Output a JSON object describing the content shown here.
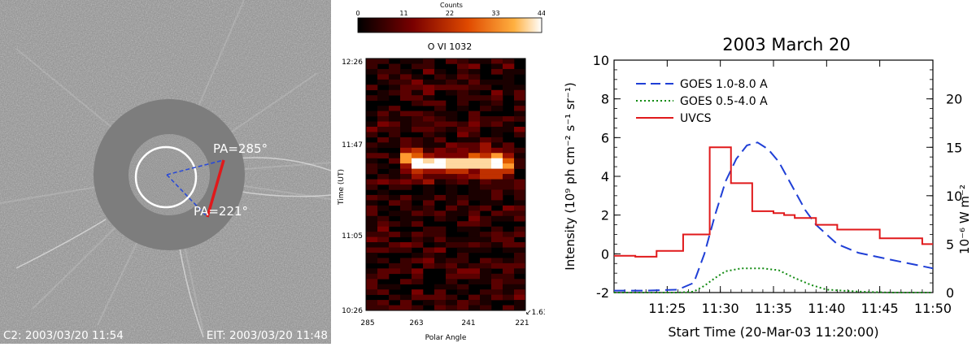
{
  "coronagraph": {
    "pa_top": "PA=285°",
    "pa_bottom": "PA=221°",
    "c2_label": "C2: 2003/03/20 11:54",
    "eit_label": "EIT: 2003/03/20 11:48",
    "line_color": "#e0191b",
    "dash_color": "#2b4bd6"
  },
  "heatmap": {
    "colorbar_title": "Counts",
    "colorbar_ticks": [
      "0",
      "11",
      "22",
      "33",
      "44"
    ],
    "title": "O VI 1032",
    "ylabel": "Time (UT)",
    "xlabel": "Polar Angle",
    "yticks": [
      "12:26",
      "11:47",
      "11:05",
      "10:26"
    ],
    "xticks": [
      "285",
      "263",
      "241",
      "221"
    ],
    "corner_note": "↙1.63"
  },
  "chart_data": {
    "type": "line",
    "title": "2003 March 20",
    "xlabel": "Start Time (20-Mar-03 11:20:00)",
    "ylabel_left": "Intensity (10⁹ ph cm⁻² s⁻¹ sr⁻¹)",
    "ylabel_right": "10⁻⁶ W m⁻²",
    "x_ticks": [
      "11:25",
      "11:30",
      "11:35",
      "11:40",
      "11:45",
      "11:50"
    ],
    "x_tick_values": [
      5,
      10,
      15,
      20,
      25,
      30
    ],
    "xlim": [
      0,
      30
    ],
    "ylim_left": [
      -2,
      10
    ],
    "y_ticks_left": [
      "-2",
      "0",
      "2",
      "4",
      "6",
      "8",
      "10"
    ],
    "ylim_right": [
      0,
      24
    ],
    "y_ticks_right": [
      "0",
      "5",
      "10",
      "15",
      "20"
    ],
    "legend": [
      "GOES 1.0-8.0 A",
      "GOES 0.5-4.0 A",
      "UVCS"
    ],
    "series": [
      {
        "name": "GOES 1.0-8.0 A",
        "color": "#1f3fd6",
        "dash": "dashed",
        "axis": "right",
        "x": [
          0,
          3,
          6,
          7.5,
          8.5,
          9.5,
          10.5,
          11.5,
          12.5,
          13.5,
          14.5,
          15.5,
          17,
          18,
          19,
          20,
          21,
          23,
          26,
          30
        ],
        "values": [
          0.2,
          0.2,
          0.3,
          1.0,
          4.0,
          8.0,
          11.5,
          13.8,
          15.2,
          15.5,
          14.8,
          13.5,
          10.5,
          8.5,
          7.0,
          6.0,
          5.0,
          4.1,
          3.4,
          2.5
        ]
      },
      {
        "name": "GOES 0.5-4.0 A",
        "color": "#108a10",
        "dash": "dotted",
        "axis": "right",
        "x": [
          0,
          6,
          7.5,
          8.5,
          9.5,
          10.5,
          12,
          14,
          15.5,
          17,
          18.5,
          20,
          23,
          26,
          30
        ],
        "values": [
          0,
          0,
          0.1,
          0.7,
          1.5,
          2.2,
          2.5,
          2.5,
          2.3,
          1.5,
          0.8,
          0.3,
          0.1,
          0,
          0
        ]
      },
      {
        "name": "UVCS",
        "color": "#e0191b",
        "dash": "solid",
        "axis": "left",
        "step": true,
        "x": [
          0,
          2,
          4,
          6.5,
          9,
          11,
          13,
          15,
          16,
          17,
          19,
          21,
          25,
          29,
          30
        ],
        "values": [
          -0.1,
          -0.15,
          0.15,
          1.0,
          5.5,
          3.65,
          2.2,
          2.1,
          2.0,
          1.85,
          1.5,
          1.25,
          0.8,
          0.5,
          0.5
        ]
      }
    ]
  }
}
